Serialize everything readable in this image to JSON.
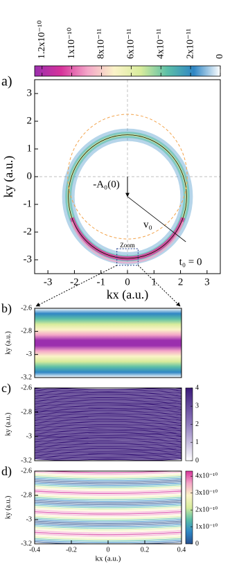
{
  "chart_data": [
    {
      "type": "colorbar",
      "colormap": [
        "#9b2fae",
        "#d6329a",
        "#f4a6c8",
        "#fbf3c8",
        "#d8ec9c",
        "#5cbfa7",
        "#2f86c4",
        "#ffffff"
      ],
      "lim": [
        1.25e-10,
        0
      ],
      "ticks": [
        {
          "value": 1.2e-10,
          "label": "1.2x10⁻¹⁰"
        },
        {
          "value": 1e-10,
          "label": "1x10⁻¹⁰"
        },
        {
          "value": 8e-11,
          "label": "8x10⁻¹¹"
        },
        {
          "value": 6e-11,
          "label": "6x10⁻¹¹"
        },
        {
          "value": 4e-11,
          "label": "4x10⁻¹¹"
        },
        {
          "value": 2e-11,
          "label": "2x10⁻¹¹"
        },
        0
      ]
    },
    {
      "type": "heatmap",
      "panel_label": "a)",
      "xlabel": "kx (a.u.)",
      "ylabel": "ky (a.u.)",
      "xlim": [
        -3.5,
        3.5
      ],
      "ylim": [
        -3.5,
        3.5
      ],
      "xticks": [
        -3,
        -2,
        -1,
        0,
        1,
        2,
        3
      ],
      "yticks": [
        -3,
        -2,
        -1,
        0,
        1,
        2,
        3
      ],
      "annotations": [
        "-A₀(0)",
        "v₀",
        "t₀ = 0",
        "Zoom"
      ]
    },
    {
      "type": "heatmap",
      "panel_label": "b)",
      "ylabel": "ky (a.u.)",
      "xlim": [
        -0.4,
        0.4
      ],
      "ylim": [
        -3.2,
        -2.6
      ],
      "yticks": [
        -3.2,
        -3,
        -2.8,
        -2.6
      ]
    },
    {
      "type": "heatmap",
      "panel_label": "c)",
      "ylabel": "ky (a.u.)",
      "xlim": [
        -0.4,
        0.4
      ],
      "ylim": [
        -3.2,
        -2.6
      ],
      "yticks": [
        -3.2,
        -3,
        -2.8,
        -2.6
      ],
      "colorbar": {
        "lim": [
          0,
          4
        ],
        "ticks": [
          0,
          1,
          2,
          3,
          4
        ],
        "colormap": [
          "#3b1a7a",
          "#8f7bbd",
          "#ffffff"
        ]
      }
    },
    {
      "type": "heatmap",
      "panel_label": "d)",
      "xlabel": "kx (a.u.)",
      "ylabel": "ky (a.u.)",
      "xlim": [
        -0.4,
        0.4
      ],
      "ylim": [
        -3.2,
        -2.6
      ],
      "xticks": [
        -0.4,
        -0.2,
        0,
        0.2,
        0.4
      ],
      "yticks": [
        -3.2,
        -3,
        -2.8,
        -2.6
      ],
      "colorbar": {
        "lim": [
          0,
          4.3e-10
        ],
        "ticks": [
          0,
          {
            "value": 1e-10,
            "label": "1x10⁻¹⁰"
          },
          {
            "value": 2e-10,
            "label": "2x10⁻¹⁰"
          },
          {
            "value": 3e-10,
            "label": "3x10⁻¹⁰"
          },
          {
            "value": 4e-10,
            "label": "4x10⁻¹⁰"
          }
        ],
        "colormap": [
          "#d6329a",
          "#f4a6c8",
          "#fbf3c8",
          "#d8ec9c",
          "#5cbfa7",
          "#2f86c4",
          "#27508f"
        ]
      }
    }
  ]
}
